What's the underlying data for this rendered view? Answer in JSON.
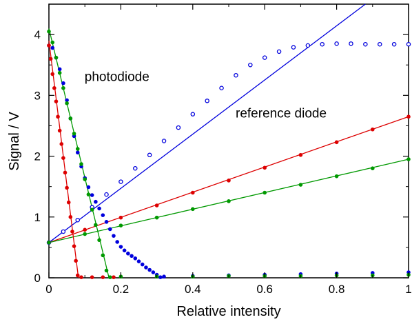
{
  "chart_data": {
    "type": "scatter",
    "title": "",
    "xlabel": "Relative intensity",
    "ylabel": "Signal / V",
    "xlim": [
      0,
      1
    ],
    "ylim": [
      0,
      4.5
    ],
    "xticks": [
      0,
      0.2,
      0.4,
      0.6,
      0.8,
      1
    ],
    "xtick_labels": [
      "0",
      "0.2",
      "0.4",
      "0.6",
      "0.8",
      "1"
    ],
    "yticks": [
      0,
      1,
      2,
      3,
      4
    ],
    "ytick_labels": [
      "0",
      "1",
      "2",
      "3",
      "4"
    ],
    "grid": false,
    "legend": "none",
    "annotations": [
      {
        "text": "photodiode",
        "x": 0.08,
        "y": 3.2
      },
      {
        "text": "reference diode",
        "x": 0.5,
        "y": 2.6
      }
    ],
    "series": [
      {
        "color": "#0000dd",
        "marker": "open-circle",
        "points": [
          [
            0,
            0.58
          ],
          [
            0.04,
            0.76
          ],
          [
            0.08,
            0.95
          ],
          [
            0.12,
            1.16
          ],
          [
            0.16,
            1.37
          ],
          [
            0.2,
            1.58
          ],
          [
            0.24,
            1.8
          ],
          [
            0.28,
            2.02
          ],
          [
            0.32,
            2.25
          ],
          [
            0.36,
            2.47
          ],
          [
            0.4,
            2.69
          ],
          [
            0.44,
            2.91
          ],
          [
            0.48,
            3.12
          ],
          [
            0.52,
            3.33
          ],
          [
            0.56,
            3.5
          ],
          [
            0.6,
            3.62
          ],
          [
            0.64,
            3.72
          ],
          [
            0.68,
            3.79
          ],
          [
            0.72,
            3.82
          ],
          [
            0.76,
            3.84
          ],
          [
            0.8,
            3.85
          ],
          [
            0.84,
            3.85
          ],
          [
            0.88,
            3.84
          ],
          [
            0.92,
            3.84
          ],
          [
            0.96,
            3.84
          ],
          [
            1,
            3.84
          ]
        ],
        "fit_line": [
          [
            0,
            0.58
          ],
          [
            0.88,
            4.5
          ]
        ]
      },
      {
        "color": "#dd0000",
        "marker": "filled-circle",
        "points": [
          [
            0,
            0.58
          ],
          [
            0.1,
            0.79
          ],
          [
            0.2,
            0.99
          ],
          [
            0.3,
            1.19
          ],
          [
            0.4,
            1.4
          ],
          [
            0.5,
            1.6
          ],
          [
            0.6,
            1.81
          ],
          [
            0.7,
            2.02
          ],
          [
            0.8,
            2.23
          ],
          [
            0.9,
            2.44
          ],
          [
            1,
            2.65
          ]
        ],
        "fit_line": [
          [
            0,
            0.58
          ],
          [
            1,
            2.65
          ]
        ]
      },
      {
        "color": "#009900",
        "marker": "filled-circle",
        "points": [
          [
            0,
            0.58
          ],
          [
            0.1,
            0.72
          ],
          [
            0.2,
            0.86
          ],
          [
            0.3,
            0.99
          ],
          [
            0.4,
            1.13
          ],
          [
            0.5,
            1.26
          ],
          [
            0.6,
            1.4
          ],
          [
            0.7,
            1.53
          ],
          [
            0.8,
            1.67
          ],
          [
            0.9,
            1.8
          ],
          [
            1,
            1.95
          ]
        ],
        "fit_line": [
          [
            0,
            0.58
          ],
          [
            1,
            1.95
          ]
        ]
      },
      {
        "color": "#0000dd",
        "marker": "filled-circle",
        "points": [
          [
            0,
            3.82
          ],
          [
            0.01,
            3.78
          ],
          [
            0.02,
            3.62
          ],
          [
            0.03,
            3.43
          ],
          [
            0.04,
            3.2
          ],
          [
            0.05,
            2.92
          ],
          [
            0.06,
            2.62
          ],
          [
            0.07,
            2.33
          ],
          [
            0.08,
            2.06
          ],
          [
            0.09,
            1.83
          ],
          [
            0.1,
            1.64
          ],
          [
            0.11,
            1.49
          ],
          [
            0.12,
            1.36
          ],
          [
            0.13,
            1.25
          ],
          [
            0.14,
            1.14
          ],
          [
            0.15,
            1.03
          ],
          [
            0.16,
            0.92
          ],
          [
            0.17,
            0.8
          ],
          [
            0.18,
            0.69
          ],
          [
            0.19,
            0.59
          ],
          [
            0.2,
            0.51
          ],
          [
            0.21,
            0.45
          ],
          [
            0.22,
            0.4
          ],
          [
            0.23,
            0.36
          ],
          [
            0.24,
            0.32
          ],
          [
            0.25,
            0.27
          ],
          [
            0.26,
            0.22
          ],
          [
            0.27,
            0.17
          ],
          [
            0.28,
            0.13
          ],
          [
            0.29,
            0.09
          ],
          [
            0.3,
            0.05
          ],
          [
            0.31,
            0.01
          ],
          [
            0.32,
            0.02
          ],
          [
            0.4,
            0.03
          ],
          [
            0.5,
            0.04
          ],
          [
            0.6,
            0.05
          ],
          [
            0.7,
            0.06
          ],
          [
            0.8,
            0.07
          ],
          [
            0.9,
            0.08
          ],
          [
            1,
            0.09
          ]
        ]
      },
      {
        "color": "#009900",
        "marker": "filled-circle",
        "points": [
          [
            0,
            4.05
          ],
          [
            0.01,
            3.87
          ],
          [
            0.02,
            3.62
          ],
          [
            0.03,
            3.37
          ],
          [
            0.04,
            3.12
          ],
          [
            0.05,
            2.87
          ],
          [
            0.06,
            2.62
          ],
          [
            0.07,
            2.37
          ],
          [
            0.08,
            2.12
          ],
          [
            0.09,
            1.87
          ],
          [
            0.1,
            1.62
          ],
          [
            0.11,
            1.37
          ],
          [
            0.12,
            1.12
          ],
          [
            0.13,
            0.87
          ],
          [
            0.14,
            0.62
          ],
          [
            0.15,
            0.37
          ],
          [
            0.16,
            0.12
          ],
          [
            0.17,
            0.01
          ],
          [
            0.2,
            0.02
          ],
          [
            0.3,
            0.02
          ],
          [
            0.4,
            0.02
          ],
          [
            0.5,
            0.03
          ],
          [
            0.6,
            0.03
          ],
          [
            0.7,
            0.03
          ],
          [
            0.8,
            0.04
          ],
          [
            0.9,
            0.04
          ],
          [
            1,
            0.05
          ]
        ],
        "fit_line": [
          [
            0,
            4.1
          ],
          [
            0.167,
            0
          ]
        ]
      },
      {
        "color": "#dd0000",
        "marker": "filled-circle",
        "points": [
          [
            0,
            3.82
          ],
          [
            0.005,
            3.6
          ],
          [
            0.01,
            3.35
          ],
          [
            0.015,
            3.12
          ],
          [
            0.02,
            2.9
          ],
          [
            0.025,
            2.65
          ],
          [
            0.03,
            2.42
          ],
          [
            0.035,
            2.2
          ],
          [
            0.04,
            1.97
          ],
          [
            0.045,
            1.73
          ],
          [
            0.05,
            1.48
          ],
          [
            0.055,
            1.24
          ],
          [
            0.06,
            1.0
          ],
          [
            0.065,
            0.76
          ],
          [
            0.07,
            0.52
          ],
          [
            0.075,
            0.28
          ],
          [
            0.08,
            0.04
          ],
          [
            0.09,
            0.01
          ],
          [
            0.12,
            0.01
          ],
          [
            0.15,
            0.01
          ],
          [
            0.18,
            0.01
          ]
        ],
        "fit_line": [
          [
            0,
            3.9
          ],
          [
            0.082,
            0
          ]
        ]
      }
    ]
  }
}
